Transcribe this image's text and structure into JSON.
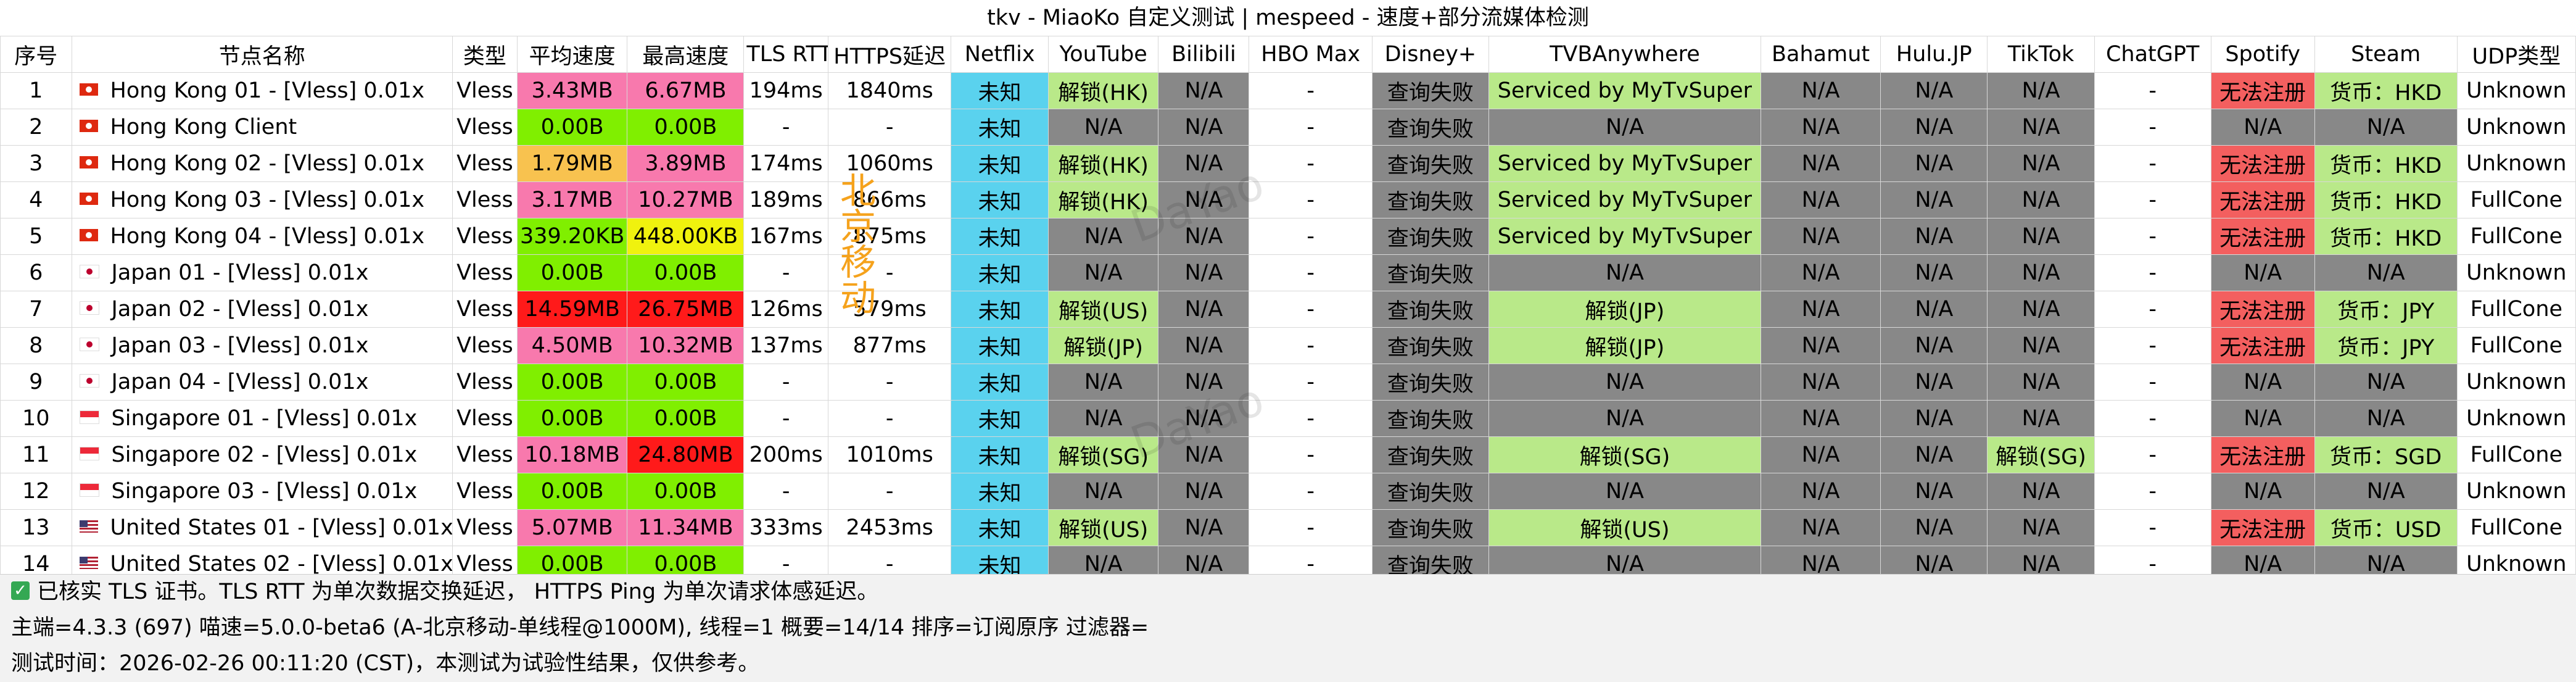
{
  "title": "tkv - MiaoKo 自定义测试 | mespeed - 速度+部分流媒体检测",
  "headers": [
    "序号",
    "节点名称",
    "类型",
    "平均速度",
    "最高速度",
    "TLS RTT",
    "HTTPS延迟",
    "Netflix",
    "YouTube",
    "Bilibili",
    "HBO Max",
    "Disney+",
    "TVBAnywhere",
    "Bahamut",
    "Hulu.JP",
    "TikTok",
    "ChatGPT",
    "Spotify",
    "Steam",
    "UDP类型"
  ],
  "colors": {
    "default": "#ffffff",
    "cyan": "#5ad2ee",
    "green": "#b9e989",
    "gray": "#888888",
    "red": "#f35f5f",
    "lime": "#80ef00",
    "pink": "#f879ad",
    "orange": "#f8c24f",
    "yellow": "#f0f20e",
    "bright_red": "#ff1a1a"
  },
  "rows": [
    {
      "cells": [
        {
          "t": "1"
        },
        {
          "t": "Hong Kong 01 - [Vless] 0.01x",
          "flag": "hk"
        },
        {
          "t": "Vless"
        },
        {
          "t": "3.43MB",
          "c": "pink"
        },
        {
          "t": "6.67MB",
          "c": "pink"
        },
        {
          "t": "194ms"
        },
        {
          "t": "1840ms"
        },
        {
          "t": "未知",
          "c": "cyan"
        },
        {
          "t": "解锁(HK)",
          "c": "green"
        },
        {
          "t": "N/A",
          "c": "gray"
        },
        {
          "t": "-"
        },
        {
          "t": "查询失败",
          "c": "gray"
        },
        {
          "t": "Serviced by MyTvSuper",
          "c": "green"
        },
        {
          "t": "N/A",
          "c": "gray"
        },
        {
          "t": "N/A",
          "c": "gray"
        },
        {
          "t": "N/A",
          "c": "gray"
        },
        {
          "t": "-"
        },
        {
          "t": "无法注册",
          "c": "red"
        },
        {
          "t": "货币：HKD",
          "c": "green"
        },
        {
          "t": "Unknown"
        }
      ]
    },
    {
      "cells": [
        {
          "t": "2"
        },
        {
          "t": "Hong Kong Client",
          "flag": "hk"
        },
        {
          "t": "Vless"
        },
        {
          "t": "0.00B",
          "c": "lime"
        },
        {
          "t": "0.00B",
          "c": "lime"
        },
        {
          "t": "-"
        },
        {
          "t": "-"
        },
        {
          "t": "未知",
          "c": "cyan"
        },
        {
          "t": "N/A",
          "c": "gray"
        },
        {
          "t": "N/A",
          "c": "gray"
        },
        {
          "t": "-"
        },
        {
          "t": "查询失败",
          "c": "gray"
        },
        {
          "t": "N/A",
          "c": "gray"
        },
        {
          "t": "N/A",
          "c": "gray"
        },
        {
          "t": "N/A",
          "c": "gray"
        },
        {
          "t": "N/A",
          "c": "gray"
        },
        {
          "t": "-"
        },
        {
          "t": "N/A",
          "c": "gray"
        },
        {
          "t": "N/A",
          "c": "gray"
        },
        {
          "t": "Unknown"
        }
      ]
    },
    {
      "cells": [
        {
          "t": "3"
        },
        {
          "t": "Hong Kong 02 - [Vless] 0.01x",
          "flag": "hk"
        },
        {
          "t": "Vless"
        },
        {
          "t": "1.79MB",
          "c": "orange"
        },
        {
          "t": "3.89MB",
          "c": "pink"
        },
        {
          "t": "174ms"
        },
        {
          "t": "1060ms"
        },
        {
          "t": "未知",
          "c": "cyan"
        },
        {
          "t": "解锁(HK)",
          "c": "green"
        },
        {
          "t": "N/A",
          "c": "gray"
        },
        {
          "t": "-"
        },
        {
          "t": "查询失败",
          "c": "gray"
        },
        {
          "t": "Serviced by MyTvSuper",
          "c": "green"
        },
        {
          "t": "N/A",
          "c": "gray"
        },
        {
          "t": "N/A",
          "c": "gray"
        },
        {
          "t": "N/A",
          "c": "gray"
        },
        {
          "t": "-"
        },
        {
          "t": "无法注册",
          "c": "red"
        },
        {
          "t": "货币：HKD",
          "c": "green"
        },
        {
          "t": "Unknown"
        }
      ]
    },
    {
      "cells": [
        {
          "t": "4"
        },
        {
          "t": "Hong Kong 03 - [Vless] 0.01x",
          "flag": "hk"
        },
        {
          "t": "Vless"
        },
        {
          "t": "3.17MB",
          "c": "pink"
        },
        {
          "t": "10.27MB",
          "c": "pink"
        },
        {
          "t": "189ms"
        },
        {
          "t": "866ms"
        },
        {
          "t": "未知",
          "c": "cyan"
        },
        {
          "t": "解锁(HK)",
          "c": "green"
        },
        {
          "t": "N/A",
          "c": "gray"
        },
        {
          "t": "-"
        },
        {
          "t": "查询失败",
          "c": "gray"
        },
        {
          "t": "Serviced by MyTvSuper",
          "c": "green"
        },
        {
          "t": "N/A",
          "c": "gray"
        },
        {
          "t": "N/A",
          "c": "gray"
        },
        {
          "t": "N/A",
          "c": "gray"
        },
        {
          "t": "-"
        },
        {
          "t": "无法注册",
          "c": "red"
        },
        {
          "t": "货币：HKD",
          "c": "green"
        },
        {
          "t": "FullCone"
        }
      ]
    },
    {
      "cells": [
        {
          "t": "5"
        },
        {
          "t": "Hong Kong 04 - [Vless] 0.01x",
          "flag": "hk"
        },
        {
          "t": "Vless"
        },
        {
          "t": "339.20KB",
          "c": "lime"
        },
        {
          "t": "448.00KB",
          "c": "yellow"
        },
        {
          "t": "167ms"
        },
        {
          "t": "875ms"
        },
        {
          "t": "未知",
          "c": "cyan"
        },
        {
          "t": "N/A",
          "c": "gray"
        },
        {
          "t": "N/A",
          "c": "gray"
        },
        {
          "t": "-"
        },
        {
          "t": "查询失败",
          "c": "gray"
        },
        {
          "t": "Serviced by MyTvSuper",
          "c": "green"
        },
        {
          "t": "N/A",
          "c": "gray"
        },
        {
          "t": "N/A",
          "c": "gray"
        },
        {
          "t": "N/A",
          "c": "gray"
        },
        {
          "t": "-"
        },
        {
          "t": "无法注册",
          "c": "red"
        },
        {
          "t": "货币：HKD",
          "c": "green"
        },
        {
          "t": "FullCone"
        }
      ]
    },
    {
      "cells": [
        {
          "t": "6"
        },
        {
          "t": "Japan 01 - [Vless] 0.01x",
          "flag": "jp"
        },
        {
          "t": "Vless"
        },
        {
          "t": "0.00B",
          "c": "lime"
        },
        {
          "t": "0.00B",
          "c": "lime"
        },
        {
          "t": "-"
        },
        {
          "t": "-"
        },
        {
          "t": "未知",
          "c": "cyan"
        },
        {
          "t": "N/A",
          "c": "gray"
        },
        {
          "t": "N/A",
          "c": "gray"
        },
        {
          "t": "-"
        },
        {
          "t": "查询失败",
          "c": "gray"
        },
        {
          "t": "N/A",
          "c": "gray"
        },
        {
          "t": "N/A",
          "c": "gray"
        },
        {
          "t": "N/A",
          "c": "gray"
        },
        {
          "t": "N/A",
          "c": "gray"
        },
        {
          "t": "-"
        },
        {
          "t": "N/A",
          "c": "gray"
        },
        {
          "t": "N/A",
          "c": "gray"
        },
        {
          "t": "Unknown"
        }
      ]
    },
    {
      "cells": [
        {
          "t": "7"
        },
        {
          "t": "Japan 02 - [Vless] 0.01x",
          "flag": "jp"
        },
        {
          "t": "Vless"
        },
        {
          "t": "14.59MB",
          "c": "bright_red"
        },
        {
          "t": "26.75MB",
          "c": "bright_red"
        },
        {
          "t": "126ms"
        },
        {
          "t": "579ms"
        },
        {
          "t": "未知",
          "c": "cyan"
        },
        {
          "t": "解锁(US)",
          "c": "green"
        },
        {
          "t": "N/A",
          "c": "gray"
        },
        {
          "t": "-"
        },
        {
          "t": "查询失败",
          "c": "gray"
        },
        {
          "t": "解锁(JP)",
          "c": "green"
        },
        {
          "t": "N/A",
          "c": "gray"
        },
        {
          "t": "N/A",
          "c": "gray"
        },
        {
          "t": "N/A",
          "c": "gray"
        },
        {
          "t": "-"
        },
        {
          "t": "无法注册",
          "c": "red"
        },
        {
          "t": "货币：JPY",
          "c": "green"
        },
        {
          "t": "FullCone"
        }
      ]
    },
    {
      "cells": [
        {
          "t": "8"
        },
        {
          "t": "Japan 03 - [Vless] 0.01x",
          "flag": "jp"
        },
        {
          "t": "Vless"
        },
        {
          "t": "4.50MB",
          "c": "pink"
        },
        {
          "t": "10.32MB",
          "c": "pink"
        },
        {
          "t": "137ms"
        },
        {
          "t": "877ms"
        },
        {
          "t": "未知",
          "c": "cyan"
        },
        {
          "t": "解锁(JP)",
          "c": "green"
        },
        {
          "t": "N/A",
          "c": "gray"
        },
        {
          "t": "-"
        },
        {
          "t": "查询失败",
          "c": "gray"
        },
        {
          "t": "解锁(JP)",
          "c": "green"
        },
        {
          "t": "N/A",
          "c": "gray"
        },
        {
          "t": "N/A",
          "c": "gray"
        },
        {
          "t": "N/A",
          "c": "gray"
        },
        {
          "t": "-"
        },
        {
          "t": "无法注册",
          "c": "red"
        },
        {
          "t": "货币：JPY",
          "c": "green"
        },
        {
          "t": "FullCone"
        }
      ]
    },
    {
      "cells": [
        {
          "t": "9"
        },
        {
          "t": "Japan 04 - [Vless] 0.01x",
          "flag": "jp"
        },
        {
          "t": "Vless"
        },
        {
          "t": "0.00B",
          "c": "lime"
        },
        {
          "t": "0.00B",
          "c": "lime"
        },
        {
          "t": "-"
        },
        {
          "t": "-"
        },
        {
          "t": "未知",
          "c": "cyan"
        },
        {
          "t": "N/A",
          "c": "gray"
        },
        {
          "t": "N/A",
          "c": "gray"
        },
        {
          "t": "-"
        },
        {
          "t": "查询失败",
          "c": "gray"
        },
        {
          "t": "N/A",
          "c": "gray"
        },
        {
          "t": "N/A",
          "c": "gray"
        },
        {
          "t": "N/A",
          "c": "gray"
        },
        {
          "t": "N/A",
          "c": "gray"
        },
        {
          "t": "-"
        },
        {
          "t": "N/A",
          "c": "gray"
        },
        {
          "t": "N/A",
          "c": "gray"
        },
        {
          "t": "Unknown"
        }
      ]
    },
    {
      "cells": [
        {
          "t": "10"
        },
        {
          "t": "Singapore 01 - [Vless] 0.01x",
          "flag": "sg"
        },
        {
          "t": "Vless"
        },
        {
          "t": "0.00B",
          "c": "lime"
        },
        {
          "t": "0.00B",
          "c": "lime"
        },
        {
          "t": "-"
        },
        {
          "t": "-"
        },
        {
          "t": "未知",
          "c": "cyan"
        },
        {
          "t": "N/A",
          "c": "gray"
        },
        {
          "t": "N/A",
          "c": "gray"
        },
        {
          "t": "-"
        },
        {
          "t": "查询失败",
          "c": "gray"
        },
        {
          "t": "N/A",
          "c": "gray"
        },
        {
          "t": "N/A",
          "c": "gray"
        },
        {
          "t": "N/A",
          "c": "gray"
        },
        {
          "t": "N/A",
          "c": "gray"
        },
        {
          "t": "-"
        },
        {
          "t": "N/A",
          "c": "gray"
        },
        {
          "t": "N/A",
          "c": "gray"
        },
        {
          "t": "Unknown"
        }
      ]
    },
    {
      "cells": [
        {
          "t": "11"
        },
        {
          "t": "Singapore 02 - [Vless] 0.01x",
          "flag": "sg"
        },
        {
          "t": "Vless"
        },
        {
          "t": "10.18MB",
          "c": "pink"
        },
        {
          "t": "24.80MB",
          "c": "bright_red"
        },
        {
          "t": "200ms"
        },
        {
          "t": "1010ms"
        },
        {
          "t": "未知",
          "c": "cyan"
        },
        {
          "t": "解锁(SG)",
          "c": "green"
        },
        {
          "t": "N/A",
          "c": "gray"
        },
        {
          "t": "-"
        },
        {
          "t": "查询失败",
          "c": "gray"
        },
        {
          "t": "解锁(SG)",
          "c": "green"
        },
        {
          "t": "N/A",
          "c": "gray"
        },
        {
          "t": "N/A",
          "c": "gray"
        },
        {
          "t": "解锁(SG)",
          "c": "green"
        },
        {
          "t": "-"
        },
        {
          "t": "无法注册",
          "c": "red"
        },
        {
          "t": "货币：SGD",
          "c": "green"
        },
        {
          "t": "FullCone"
        }
      ]
    },
    {
      "cells": [
        {
          "t": "12"
        },
        {
          "t": "Singapore 03 - [Vless] 0.01x",
          "flag": "sg"
        },
        {
          "t": "Vless"
        },
        {
          "t": "0.00B",
          "c": "lime"
        },
        {
          "t": "0.00B",
          "c": "lime"
        },
        {
          "t": "-"
        },
        {
          "t": "-"
        },
        {
          "t": "未知",
          "c": "cyan"
        },
        {
          "t": "N/A",
          "c": "gray"
        },
        {
          "t": "N/A",
          "c": "gray"
        },
        {
          "t": "-"
        },
        {
          "t": "查询失败",
          "c": "gray"
        },
        {
          "t": "N/A",
          "c": "gray"
        },
        {
          "t": "N/A",
          "c": "gray"
        },
        {
          "t": "N/A",
          "c": "gray"
        },
        {
          "t": "N/A",
          "c": "gray"
        },
        {
          "t": "-"
        },
        {
          "t": "N/A",
          "c": "gray"
        },
        {
          "t": "N/A",
          "c": "gray"
        },
        {
          "t": "Unknown"
        }
      ]
    },
    {
      "cells": [
        {
          "t": "13"
        },
        {
          "t": "United States 01 - [Vless] 0.01x",
          "flag": "us"
        },
        {
          "t": "Vless"
        },
        {
          "t": "5.07MB",
          "c": "pink"
        },
        {
          "t": "11.34MB",
          "c": "pink"
        },
        {
          "t": "333ms"
        },
        {
          "t": "2453ms"
        },
        {
          "t": "未知",
          "c": "cyan"
        },
        {
          "t": "解锁(US)",
          "c": "green"
        },
        {
          "t": "N/A",
          "c": "gray"
        },
        {
          "t": "-"
        },
        {
          "t": "查询失败",
          "c": "gray"
        },
        {
          "t": "解锁(US)",
          "c": "green"
        },
        {
          "t": "N/A",
          "c": "gray"
        },
        {
          "t": "N/A",
          "c": "gray"
        },
        {
          "t": "N/A",
          "c": "gray"
        },
        {
          "t": "-"
        },
        {
          "t": "无法注册",
          "c": "red"
        },
        {
          "t": "货币：USD",
          "c": "green"
        },
        {
          "t": "FullCone"
        }
      ]
    },
    {
      "cells": [
        {
          "t": "14"
        },
        {
          "t": "United States 02 - [Vless] 0.01x",
          "flag": "us"
        },
        {
          "t": "Vless"
        },
        {
          "t": "0.00B",
          "c": "lime"
        },
        {
          "t": "0.00B",
          "c": "lime"
        },
        {
          "t": "-"
        },
        {
          "t": "-"
        },
        {
          "t": "未知",
          "c": "cyan"
        },
        {
          "t": "N/A",
          "c": "gray"
        },
        {
          "t": "N/A",
          "c": "gray"
        },
        {
          "t": "-"
        },
        {
          "t": "查询失败",
          "c": "gray"
        },
        {
          "t": "N/A",
          "c": "gray"
        },
        {
          "t": "N/A",
          "c": "gray"
        },
        {
          "t": "N/A",
          "c": "gray"
        },
        {
          "t": "N/A",
          "c": "gray"
        },
        {
          "t": "-"
        },
        {
          "t": "N/A",
          "c": "gray"
        },
        {
          "t": "N/A",
          "c": "gray"
        },
        {
          "t": "Unknown"
        }
      ]
    }
  ],
  "watermark": "北京移动",
  "ghost_watermark": "DaYao",
  "footer": {
    "check_icon": "check-icon",
    "line1": "已核实 TLS 证书。TLS RTT 为单次数据交换延迟， HTTPS Ping 为单次请求体感延迟。",
    "line2": "主端=4.3.3 (697) 喵速=5.0.0-beta6 (A-北京移动-单线程@1000M), 线程=1 概要=14/14 排序=订阅原序 过滤器=",
    "line3": "测试时间：2026-02-26 00:11:20 (CST)，本测试为试验性结果，仅供参考。"
  }
}
